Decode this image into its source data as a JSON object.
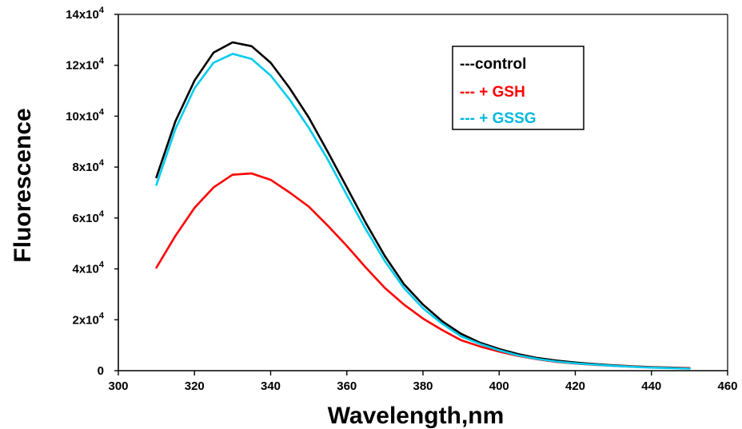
{
  "chart_data": {
    "type": "line",
    "title": "",
    "xlabel": "Wavelength,nm",
    "ylabel": "Fluorescence",
    "xlim": [
      300,
      460
    ],
    "ylim": [
      0,
      140000
    ],
    "x_ticks": [
      "300",
      "320",
      "340",
      "360",
      "380",
      "400",
      "420",
      "440",
      "460"
    ],
    "y_ticks": [
      {
        "value": 0,
        "base": "0",
        "exp": ""
      },
      {
        "value": 20000,
        "base": "2x10",
        "exp": "4"
      },
      {
        "value": 40000,
        "base": "4x10",
        "exp": "4"
      },
      {
        "value": 60000,
        "base": "6x10",
        "exp": "4"
      },
      {
        "value": 80000,
        "base": "8x10",
        "exp": "4"
      },
      {
        "value": 100000,
        "base": "10x10",
        "exp": "4"
      },
      {
        "value": 120000,
        "base": "12x10",
        "exp": "4"
      },
      {
        "value": 140000,
        "base": "14x10",
        "exp": "4"
      }
    ],
    "grid": false,
    "legend_position": "top-right",
    "x": [
      310,
      315,
      320,
      325,
      330,
      335,
      340,
      345,
      350,
      355,
      360,
      365,
      370,
      375,
      380,
      385,
      390,
      395,
      400,
      405,
      410,
      415,
      420,
      425,
      430,
      435,
      440,
      445,
      450
    ],
    "series": [
      {
        "name": "---control",
        "color": "#000000",
        "values": [
          76000,
          98000,
          114000,
          125000,
          129000,
          127500,
          121000,
          111000,
          99500,
          86000,
          72000,
          58000,
          45000,
          34000,
          26000,
          19500,
          14500,
          11000,
          8500,
          6500,
          5000,
          4000,
          3200,
          2600,
          2100,
          1700,
          1400,
          1200,
          1000
        ]
      },
      {
        "name": "--- + GSH",
        "color": "#ff0000",
        "values": [
          40500,
          53000,
          64000,
          72000,
          77000,
          77500,
          75000,
          70000,
          64500,
          57000,
          49000,
          40500,
          32500,
          26000,
          20500,
          16000,
          12000,
          9500,
          7500,
          5800,
          4500,
          3500,
          2800,
          2300,
          1900,
          1600,
          1300,
          1100,
          900
        ]
      },
      {
        "name": "--- + GSSG",
        "color": "#00ccee",
        "values": [
          73000,
          95000,
          111000,
          121000,
          124500,
          122500,
          116000,
          106500,
          95500,
          83000,
          69000,
          55500,
          43000,
          32500,
          24500,
          18500,
          13500,
          10500,
          8000,
          6000,
          4600,
          3600,
          2900,
          2400,
          1900,
          1500,
          1200,
          1000,
          800
        ]
      }
    ]
  }
}
